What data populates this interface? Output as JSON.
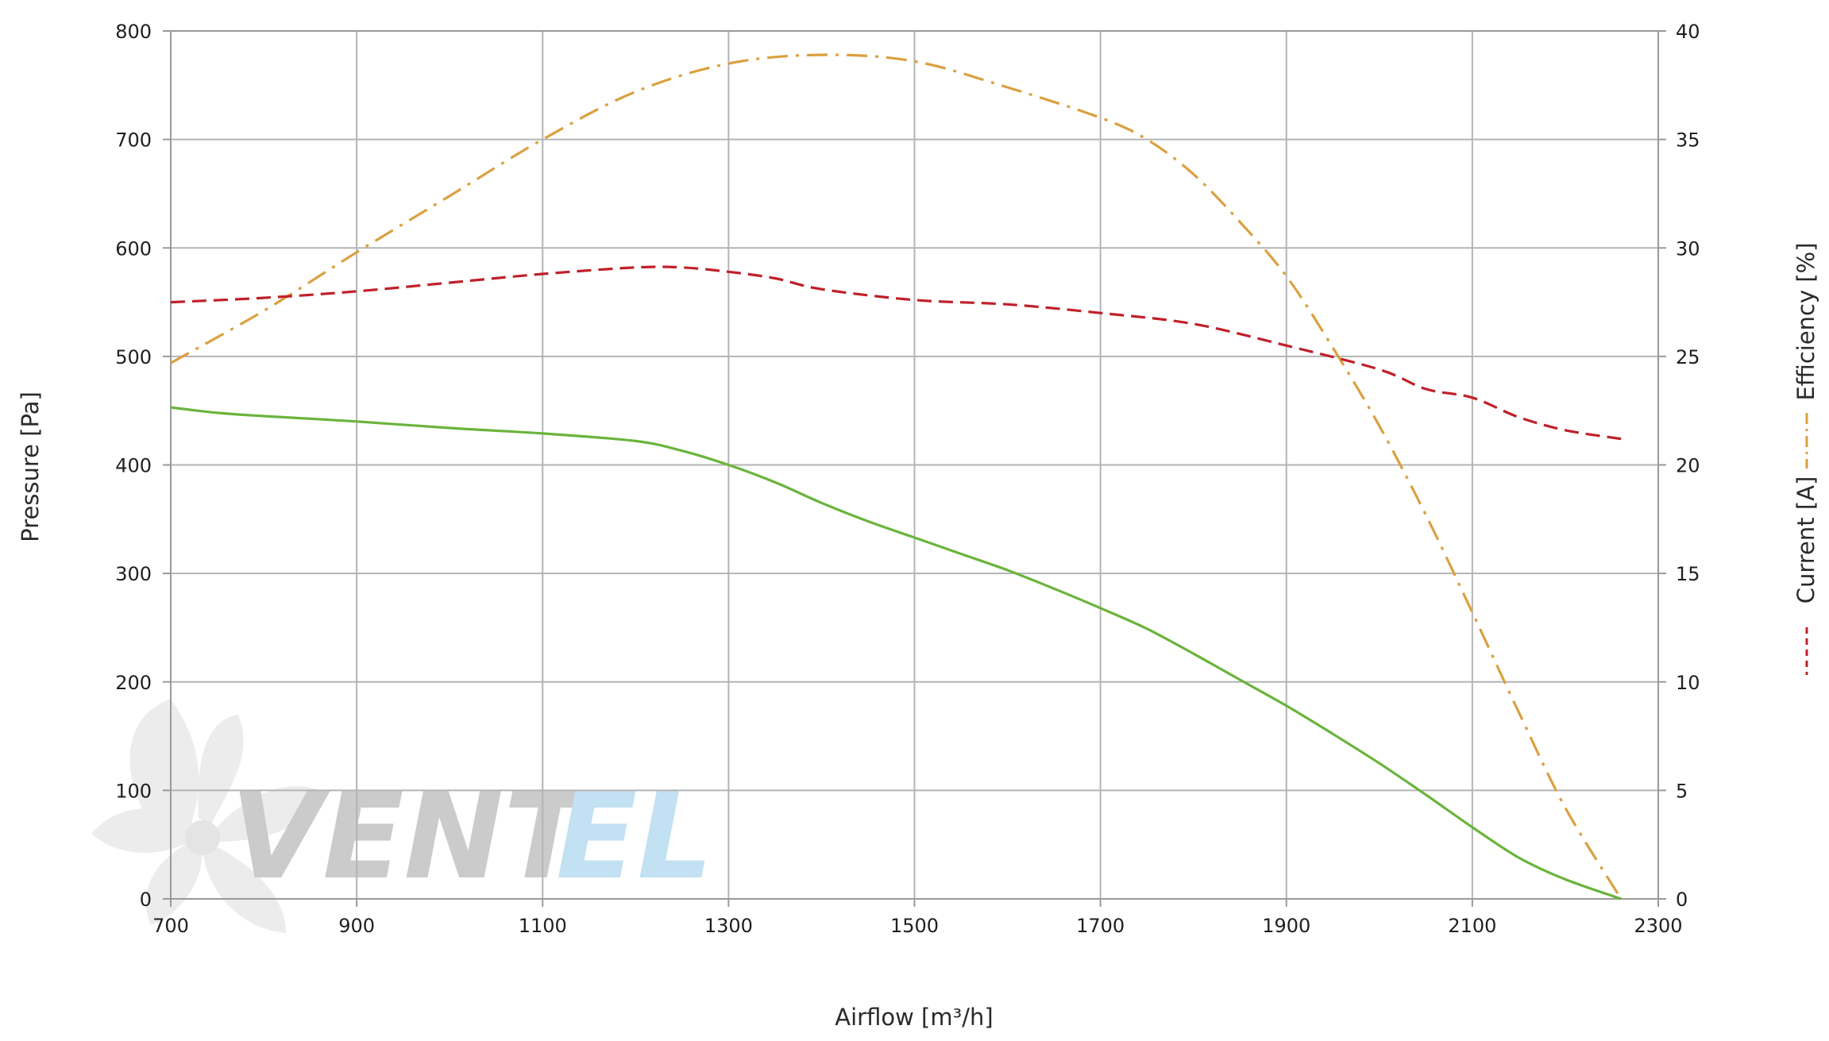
{
  "chart_data": {
    "type": "line",
    "title": "",
    "xlabel": "Airflow [m³/h]",
    "ylabel": "Pressure [Pa]",
    "y2label_top": "Efficiency [%]",
    "y2label_bottom": "Current [A]",
    "xlim": [
      700,
      2300
    ],
    "ylim": [
      0,
      800
    ],
    "y2lim": [
      0,
      40
    ],
    "x_ticks": [
      "700",
      "900",
      "1100",
      "1300",
      "1500",
      "1700",
      "1900",
      "2100",
      "2300"
    ],
    "y_ticks": [
      "0",
      "100",
      "200",
      "300",
      "400",
      "500",
      "600",
      "700",
      "800"
    ],
    "y2_ticks": [
      "0",
      "5",
      "10",
      "15",
      "20",
      "25",
      "30",
      "35",
      "40"
    ],
    "grid": true,
    "series": [
      {
        "name": "Pressure",
        "axis": "left",
        "color": "#6ab43c",
        "style": "solid",
        "x": [
          700,
          750,
          800,
          900,
          1000,
          1100,
          1200,
          1250,
          1300,
          1350,
          1400,
          1450,
          1500,
          1550,
          1600,
          1650,
          1700,
          1750,
          1800,
          1850,
          1900,
          1950,
          2000,
          2050,
          2100,
          2150,
          2200,
          2260
        ],
        "y": [
          453,
          448,
          445,
          440,
          434,
          429,
          422,
          413,
          400,
          384,
          365,
          348,
          333,
          318,
          303,
          286,
          268,
          249,
          226,
          202,
          178,
          152,
          125,
          96,
          66,
          38,
          18,
          0
        ]
      },
      {
        "name": "Efficiency [%]",
        "axis": "right",
        "color": "#dba040",
        "style": "dashdot",
        "x": [
          700,
          800,
          900,
          1000,
          1100,
          1200,
          1300,
          1400,
          1500,
          1600,
          1700,
          1750,
          1800,
          1850,
          1900,
          1950,
          2000,
          2050,
          2100,
          2150,
          2200,
          2260
        ],
        "y": [
          24.7,
          27.1,
          29.8,
          32.4,
          35.0,
          37.2,
          38.5,
          38.9,
          38.6,
          37.4,
          36.0,
          35.0,
          33.4,
          31.2,
          28.7,
          25.4,
          21.8,
          17.7,
          13.2,
          8.6,
          4.2,
          0
        ]
      },
      {
        "name": "Current [A]",
        "axis": "right",
        "color": "#c0202a",
        "style": "dashed",
        "x": [
          700,
          800,
          900,
          1000,
          1100,
          1200,
          1250,
          1300,
          1350,
          1400,
          1500,
          1600,
          1700,
          1800,
          1900,
          2000,
          2050,
          2100,
          2150,
          2200,
          2260
        ],
        "y": [
          27.5,
          27.7,
          28.0,
          28.4,
          28.8,
          29.1,
          29.1,
          28.9,
          28.6,
          28.1,
          27.6,
          27.4,
          27.0,
          26.5,
          25.5,
          24.4,
          23.5,
          23.1,
          22.2,
          21.6,
          21.2
        ]
      }
    ]
  },
  "watermark": {
    "text_dark": "VENT",
    "text_light": "EL",
    "colors": {
      "dark": "#c9c9c9",
      "light": "#bfe0f2",
      "blade": "#ececec"
    }
  }
}
